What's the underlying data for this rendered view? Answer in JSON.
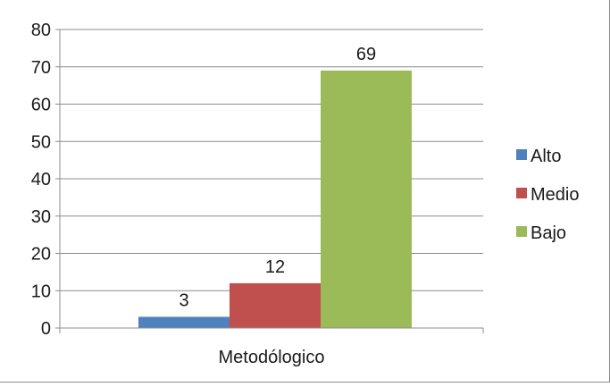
{
  "chart_data": {
    "type": "bar",
    "categories": [
      "Metodólogico"
    ],
    "series": [
      {
        "name": "Alto",
        "values": [
          3
        ],
        "color": "#4f81bd"
      },
      {
        "name": "Medio",
        "values": [
          12
        ],
        "color": "#c0504d"
      },
      {
        "name": "Bajo",
        "values": [
          69
        ],
        "color": "#9bbb59"
      }
    ],
    "ylim": [
      0,
      80
    ],
    "yticks": [
      0,
      10,
      20,
      30,
      40,
      50,
      60,
      70,
      80
    ],
    "data_labels": [
      "3",
      "12",
      "69"
    ],
    "grid": true,
    "legend_position": "right"
  }
}
